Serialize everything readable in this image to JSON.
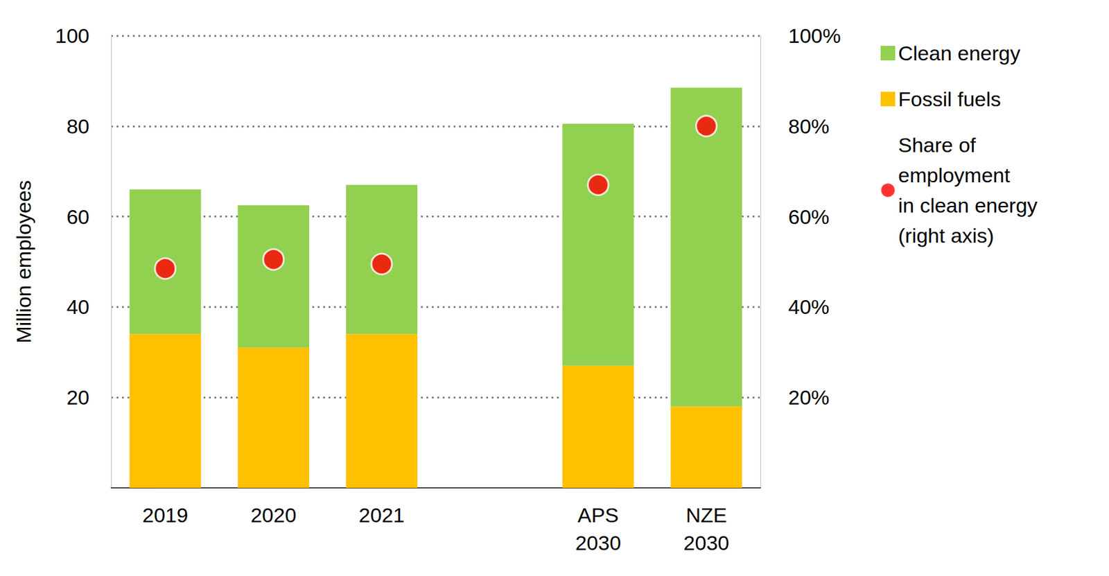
{
  "chart_data": {
    "type": "bar",
    "stacked": true,
    "categories": [
      "2019",
      "2020",
      "2021",
      null,
      "APS\n2030",
      "NZE\n2030"
    ],
    "y_label": "Million employees",
    "series": [
      {
        "name": "Fossil fuels",
        "color": "#ffc000",
        "type": "bar",
        "values": [
          34,
          31,
          34,
          null,
          27,
          18
        ]
      },
      {
        "name": "Clean energy",
        "color": "#92d050",
        "type": "bar",
        "values": [
          32,
          31.5,
          33,
          null,
          53.5,
          70.5
        ]
      },
      {
        "name": "Share of\nemployment\nin clean energy\n(right axis)",
        "color": "#ff0000",
        "type": "scatter",
        "marker": "circle",
        "axis": "y2",
        "values": [
          48.5,
          50.5,
          49.5,
          null,
          67,
          80
        ]
      }
    ],
    "ylim": [
      0,
      100
    ],
    "yticks": [
      20,
      40,
      60,
      80,
      100
    ],
    "y2lim": [
      0,
      100
    ],
    "y2ticks": [
      {
        "value": 20,
        "label": "20%"
      },
      {
        "value": 40,
        "label": "40%"
      },
      {
        "value": 60,
        "label": "60%"
      },
      {
        "value": 80,
        "label": "80%"
      },
      {
        "value": 100,
        "label": "100%"
      }
    ],
    "grid": true,
    "legend": "right"
  }
}
